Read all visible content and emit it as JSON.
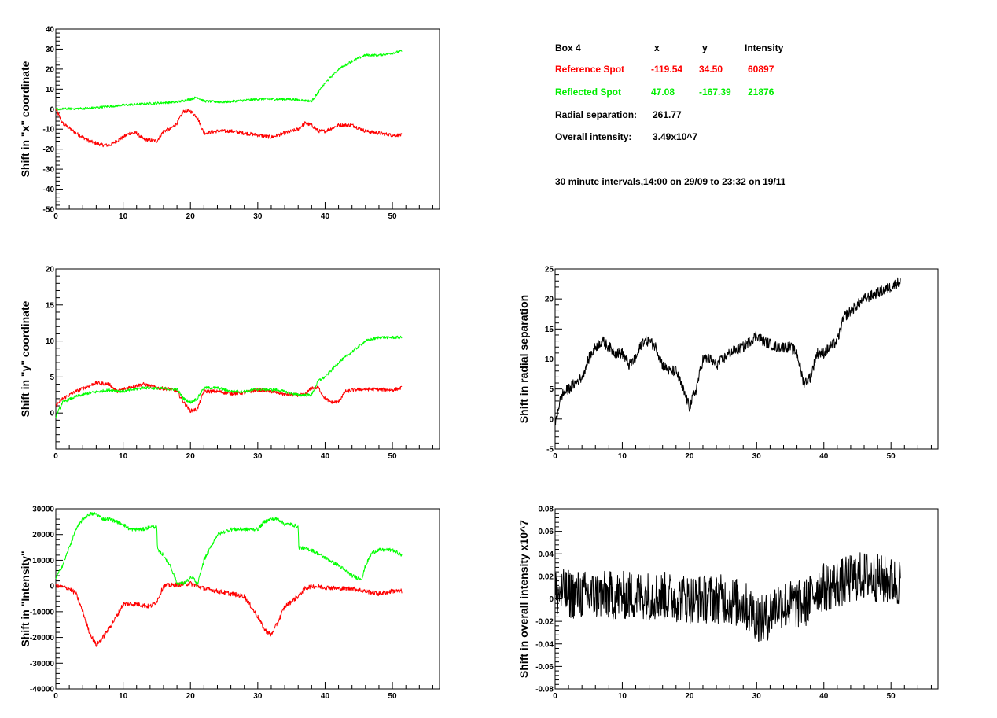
{
  "colors": {
    "reference": "#ff0000",
    "reflected": "#00ff00",
    "radial": "#000000",
    "axis": "#000000"
  },
  "info": {
    "header_box": "Box 4",
    "header_x": "x",
    "header_y": "y",
    "header_intensity": "Intensity",
    "reference_label": "Reference Spot",
    "reference_x": "-119.54",
    "reference_y": "34.50",
    "reference_intensity": "60897",
    "reflected_label": "Reflected Spot",
    "reflected_x": "47.08",
    "reflected_y": "-167.39",
    "reflected_intensity": "21876",
    "radial_label": "Radial separation:",
    "radial_value": "261.77",
    "overall_label": "Overall intensity:",
    "overall_value": "3.49x10^7",
    "interval_note": "30 minute intervals,14:00 on 29/09 to 23:32 on 19/11"
  },
  "chart_data": [
    {
      "type": "line",
      "ylabel": "Shift in \"x\" coordinate",
      "xlim": [
        0,
        57
      ],
      "ylim": [
        -50,
        40
      ],
      "xticks": [
        0,
        10,
        20,
        30,
        40,
        50
      ],
      "yticks": [
        -50,
        -40,
        -30,
        -20,
        -10,
        0,
        10,
        20,
        30,
        40
      ],
      "series": [
        {
          "color": "#ff0000",
          "noise": 0.9,
          "x": [
            0,
            1,
            3,
            5,
            7,
            8,
            9,
            10,
            11,
            12,
            13,
            15,
            16,
            17,
            18,
            19,
            20,
            21,
            22,
            24,
            26,
            28,
            30,
            32,
            34,
            36,
            37,
            38,
            39,
            40,
            42,
            44,
            46,
            48,
            50,
            51.4
          ],
          "y": [
            0,
            -7,
            -12,
            -16,
            -18,
            -18,
            -16,
            -14,
            -12,
            -12,
            -15,
            -16,
            -11,
            -10,
            -7,
            -1,
            -1,
            -4,
            -12,
            -11,
            -11,
            -12,
            -13,
            -14,
            -12,
            -10,
            -7,
            -8,
            -11,
            -11,
            -8,
            -8,
            -11,
            -12,
            -13,
            -13
          ]
        },
        {
          "color": "#00ff00",
          "noise": 0.6,
          "x": [
            0,
            5,
            10,
            15,
            18,
            20,
            21,
            22,
            25,
            30,
            35,
            38,
            40,
            42,
            44,
            46,
            48,
            50,
            51.4
          ],
          "y": [
            0,
            0.5,
            2,
            3,
            3.5,
            5,
            6,
            4,
            3.5,
            5,
            5,
            4,
            13,
            20,
            24,
            27,
            27,
            28,
            29
          ]
        }
      ]
    },
    {
      "type": "line",
      "ylabel": "Shift in \"y\" coordinate",
      "xlim": [
        0,
        57
      ],
      "ylim": [
        -5,
        20
      ],
      "xticks": [
        0,
        10,
        20,
        30,
        40,
        50
      ],
      "yticks": [
        0,
        5,
        10,
        15,
        20
      ],
      "series": [
        {
          "color": "#ff0000",
          "noise": 0.25,
          "x": [
            0,
            1,
            3,
            5,
            6,
            8,
            9,
            11,
            13,
            15,
            17,
            18,
            19,
            20,
            21,
            22,
            24,
            26,
            28,
            30,
            32,
            34,
            36,
            37,
            38,
            39,
            40,
            41,
            42,
            43,
            45,
            47,
            50,
            51.4
          ],
          "y": [
            1,
            2,
            3,
            3.8,
            4.2,
            4,
            3,
            3.6,
            4,
            3.5,
            3.3,
            3,
            1.5,
            0.3,
            0.5,
            3,
            3,
            2.7,
            2.8,
            3.2,
            3,
            2.6,
            2.5,
            2.5,
            3.5,
            3.5,
            2,
            1.5,
            1.6,
            3,
            3.3,
            3.3,
            3.2,
            3.5
          ]
        },
        {
          "color": "#00ff00",
          "noise": 0.2,
          "x": [
            0,
            1,
            3,
            5,
            8,
            10,
            13,
            16,
            17,
            18,
            19,
            20,
            21,
            22,
            24,
            26,
            28,
            30,
            33,
            36,
            38,
            39,
            40,
            42,
            44,
            46,
            48,
            50,
            51.4
          ],
          "y": [
            -0.5,
            1.5,
            2.3,
            2.8,
            3.2,
            3,
            3.5,
            3.4,
            3.3,
            3.3,
            2,
            1.5,
            2,
            3.5,
            3.5,
            3,
            3,
            3.3,
            3.2,
            2.5,
            2.5,
            4.5,
            5,
            7,
            8.5,
            10,
            10.5,
            10.5,
            10.5
          ]
        }
      ]
    },
    {
      "type": "line",
      "ylabel": "Shift in \"Intensity\"",
      "xlim": [
        0,
        57
      ],
      "ylim": [
        -40000,
        30000
      ],
      "xticks": [
        0,
        10,
        20,
        30,
        40,
        50
      ],
      "yticks": [
        -40000,
        -30000,
        -20000,
        -10000,
        0,
        10000,
        20000,
        30000
      ],
      "series": [
        {
          "color": "#ff0000",
          "noise": 900,
          "x": [
            0,
            2,
            3,
            4,
            5,
            6,
            7,
            8,
            9,
            10,
            12,
            14,
            15,
            16,
            18,
            20,
            22,
            24,
            26,
            28,
            29,
            30,
            31,
            32,
            33,
            34,
            36,
            37,
            38,
            40,
            42,
            44,
            46,
            48,
            50,
            51.4
          ],
          "y": [
            0,
            -1000,
            -3000,
            -10000,
            -18000,
            -23000,
            -20000,
            -16000,
            -12000,
            -7000,
            -7000,
            -8000,
            -6000,
            0,
            500,
            1000,
            -1000,
            -2000,
            -3000,
            -4000,
            -8000,
            -12000,
            -17000,
            -19000,
            -14000,
            -8000,
            -4000,
            -1000,
            0,
            -500,
            -1000,
            -1000,
            -2000,
            -3000,
            -2000,
            -2000
          ]
        },
        {
          "color": "#00ff00",
          "noise": 700,
          "x": [
            0,
            1,
            2,
            3,
            4,
            5,
            6,
            7,
            8,
            9,
            10,
            11,
            12,
            13,
            14,
            15,
            15.1,
            16,
            17,
            18,
            19,
            20,
            20.5,
            21,
            21.5,
            22,
            23,
            24,
            25,
            26,
            27,
            28,
            29,
            30,
            31,
            32,
            33,
            34,
            35,
            36,
            36.1,
            38,
            40,
            42,
            43,
            44,
            45,
            45.5,
            46,
            47,
            48,
            50,
            51.4
          ],
          "y": [
            3000,
            8000,
            15000,
            22000,
            26000,
            28000,
            28000,
            26000,
            26000,
            25000,
            24000,
            22000,
            22000,
            22000,
            23000,
            23000,
            14000,
            12000,
            8000,
            1000,
            1000,
            3000,
            3000,
            0,
            5000,
            10000,
            15000,
            20000,
            21000,
            22000,
            22000,
            22000,
            22000,
            22000,
            25000,
            26000,
            26000,
            24000,
            24000,
            23000,
            15000,
            14000,
            11000,
            8000,
            6000,
            4000,
            3000,
            3000,
            8000,
            13000,
            14000,
            14000,
            12000
          ]
        }
      ]
    },
    {
      "type": "line",
      "ylabel": "Shift in radial separation",
      "xlim": [
        0,
        57
      ],
      "ylim": [
        -5,
        25
      ],
      "xticks": [
        0,
        10,
        20,
        30,
        40,
        50
      ],
      "yticks": [
        -5,
        0,
        5,
        10,
        15,
        20,
        25
      ],
      "series": [
        {
          "color": "#000000",
          "noise": 0.9,
          "x": [
            0,
            0.5,
            1,
            2,
            3,
            4,
            5,
            6,
            7,
            8,
            9,
            10,
            11,
            12,
            13,
            14,
            15,
            16,
            17,
            18,
            19,
            20,
            21,
            22,
            23,
            24,
            26,
            28,
            30,
            31,
            33,
            35,
            36,
            37,
            38,
            39,
            40,
            42,
            43,
            44,
            46,
            48,
            50,
            51.4
          ],
          "y": [
            -1,
            2,
            4,
            5,
            6,
            7,
            10,
            12,
            13,
            12,
            11,
            11,
            9,
            10,
            13,
            13,
            12,
            9,
            8,
            8,
            5,
            2,
            5,
            10,
            10,
            9,
            11,
            12,
            14,
            13,
            12,
            12,
            11,
            6,
            7,
            11,
            11,
            13,
            17,
            18,
            20,
            21,
            22,
            23
          ]
        }
      ]
    },
    {
      "type": "line",
      "ylabel": "Shift in overall intensity x10^7",
      "xlim": [
        0,
        57
      ],
      "ylim": [
        -0.08,
        0.08
      ],
      "xticks": [
        0,
        10,
        20,
        30,
        40,
        50
      ],
      "yticks": [
        -0.08,
        -0.06,
        -0.04,
        -0.02,
        0,
        0.02,
        0.04,
        0.06,
        0.08
      ],
      "series": [
        {
          "color": "#000000",
          "noise": 0.022,
          "x": [
            0,
            5,
            10,
            15,
            20,
            25,
            28,
            30,
            31,
            33,
            35,
            37,
            38,
            39,
            40,
            43,
            45,
            47,
            50,
            51.4
          ],
          "y": [
            0.005,
            0.003,
            0.003,
            0.003,
            0,
            0,
            -0.005,
            -0.015,
            -0.02,
            -0.005,
            -0.005,
            -0.005,
            0,
            0.01,
            0.01,
            0.015,
            0.02,
            0.02,
            0.015,
            0.015
          ]
        }
      ]
    }
  ]
}
